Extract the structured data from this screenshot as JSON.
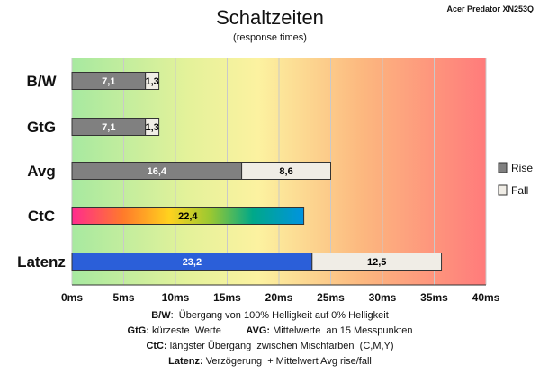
{
  "chart_data": {
    "type": "bar",
    "orientation": "horizontal",
    "stacked": true,
    "title": "Schaltzeiten",
    "subtitle": "(response times)",
    "model": "Acer Predator XN253Q",
    "categories": [
      "B/W",
      "GtG",
      "Avg",
      "CtC",
      "Latenz"
    ],
    "series": [
      {
        "name": "Rise",
        "values": [
          7.1,
          7.1,
          16.4,
          null,
          23.2
        ],
        "color": "#808080",
        "label_color": "#ffffff"
      },
      {
        "name": "Fall",
        "values": [
          1.3,
          1.3,
          8.6,
          null,
          12.5
        ],
        "color": "#f0ede6",
        "label_color": "#000000"
      }
    ],
    "special_bars": [
      {
        "category": "CtC",
        "value": 22.4,
        "fill": "rainbow",
        "label_color": "#000000"
      },
      {
        "category": "Latenz",
        "series": "Rise",
        "fill": "#2b5fd9",
        "label_color": "#ffffff"
      }
    ],
    "x_ticks": [
      "0ms",
      "5ms",
      "10ms",
      "15ms",
      "20ms",
      "25ms",
      "30ms",
      "35ms",
      "40ms"
    ],
    "xlim": [
      0,
      40
    ],
    "grid": true,
    "background": "green-yellow-red gradient",
    "legend": {
      "position": "right",
      "items": [
        "Rise",
        "Fall"
      ]
    }
  },
  "footnotes": [
    [
      {
        "t": "B/W",
        "b": true
      },
      {
        "t": ":  Übergang von 100% Helligkeit auf 0% Helligkeit",
        "b": false
      }
    ],
    [
      {
        "t": "GtG:",
        "b": true
      },
      {
        "t": " kürzeste  Werte         ",
        "b": false
      },
      {
        "t": "AVG:",
        "b": true
      },
      {
        "t": " Mittelwerte  an 15 Messpunkten",
        "b": false
      }
    ],
    [
      {
        "t": "CtC:",
        "b": true
      },
      {
        "t": " längster Übergang  zwischen Mischfarben  (C,M,Y)",
        "b": false
      }
    ],
    [
      {
        "t": "Latenz:",
        "b": true
      },
      {
        "t": " Verzögerung  + Mittelwert Avg rise/fall",
        "b": false
      }
    ]
  ]
}
